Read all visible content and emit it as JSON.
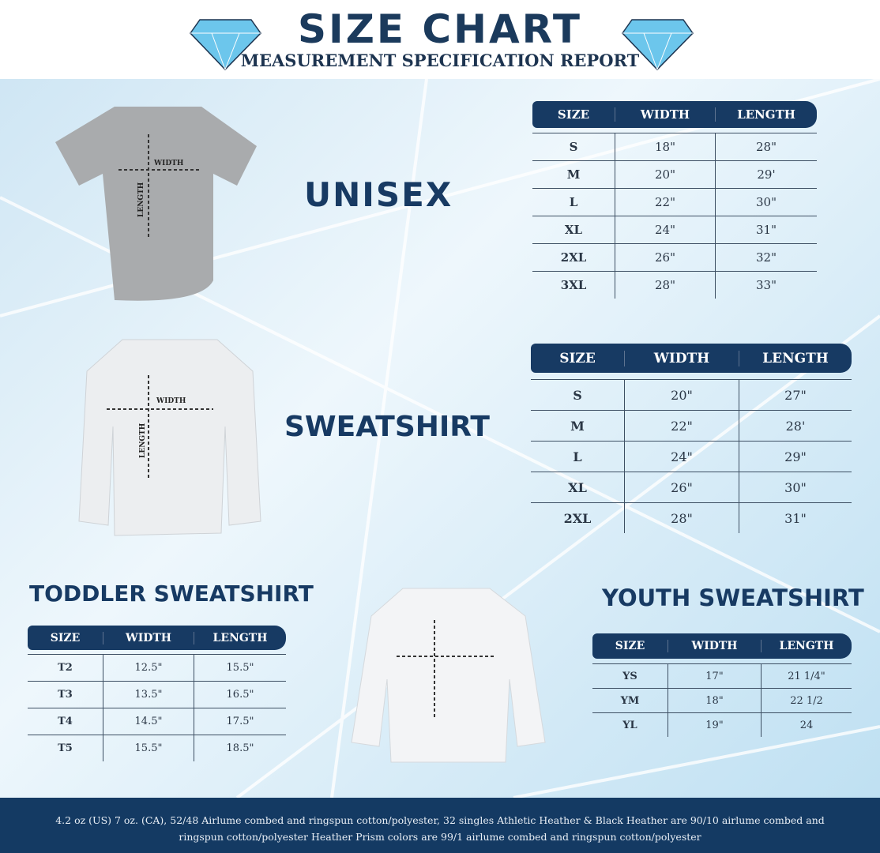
{
  "header": {
    "title": "SIZE CHART",
    "subtitle": "MEASUREMENT SPECIFICATION REPORT"
  },
  "colors": {
    "navy": "#173a63",
    "diamond": "#6cc6ec",
    "background": "#d6ebf7"
  },
  "garment_labels": {
    "width": "WIDTH",
    "length": "LENGTH"
  },
  "sections": [
    {
      "name": "UNISEX",
      "columns": [
        "SIZE",
        "WIDTH",
        "LENGTH"
      ],
      "rows": [
        [
          "S",
          "18\"",
          "28\""
        ],
        [
          "M",
          "20\"",
          "29'"
        ],
        [
          "L",
          "22\"",
          "30\""
        ],
        [
          "XL",
          "24\"",
          "31\""
        ],
        [
          "2XL",
          "26\"",
          "32\""
        ],
        [
          "3XL",
          "28\"",
          "33\""
        ]
      ]
    },
    {
      "name": "SWEATSHIRT",
      "columns": [
        "SIZE",
        "WIDTH",
        "LENGTH"
      ],
      "rows": [
        [
          "S",
          "20\"",
          "27\""
        ],
        [
          "M",
          "22\"",
          "28'"
        ],
        [
          "L",
          "24\"",
          "29\""
        ],
        [
          "XL",
          "26\"",
          "30\""
        ],
        [
          "2XL",
          "28\"",
          "31\""
        ]
      ]
    },
    {
      "name": "TODDLER SWEATSHIRT",
      "columns": [
        "SIZE",
        "WIDTH",
        "LENGTH"
      ],
      "rows": [
        [
          "T2",
          "12.5\"",
          "15.5\""
        ],
        [
          "T3",
          "13.5\"",
          "16.5\""
        ],
        [
          "T4",
          "14.5\"",
          "17.5\""
        ],
        [
          "T5",
          "15.5\"",
          "18.5\""
        ]
      ]
    },
    {
      "name": "YOUTH SWEATSHIRT",
      "columns": [
        "SIZE",
        "WIDTH",
        "LENGTH"
      ],
      "rows": [
        [
          "YS",
          "17\"",
          "21 1/4\""
        ],
        [
          "YM",
          "18\"",
          "22 1/2"
        ],
        [
          "YL",
          "19\"",
          "24"
        ]
      ]
    }
  ],
  "footer": "4.2 oz (US) 7 oz. (CA), 52/48 Airlume combed and ringspun cotton/polyester, 32 singles Athletic Heather & Black Heather are 90/10 airlume combed and ringspun cotton/polyester Heather Prism colors are 99/1 airlume combed and ringspun cotton/polyester"
}
